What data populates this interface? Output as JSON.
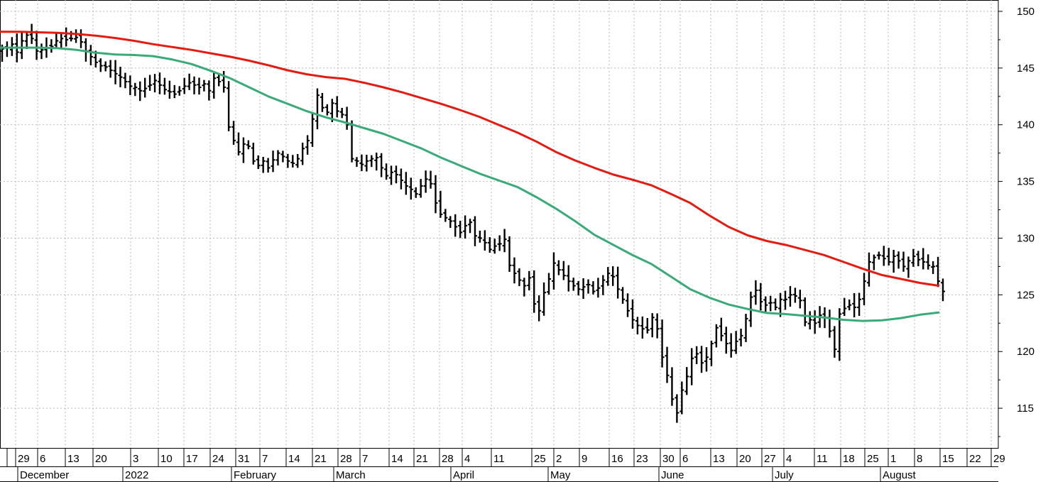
{
  "chart_data": {
    "type": "ohlc",
    "grid": true,
    "y_axis": {
      "position": "right",
      "ticks": [
        150,
        145,
        140,
        135,
        130,
        125,
        120,
        115
      ],
      "range": [
        111.5,
        151
      ]
    },
    "x_axis": {
      "week_ticks": [
        "29",
        "6",
        "13",
        "20",
        "3",
        "10",
        "17",
        "24",
        "31",
        "7",
        "14",
        "21",
        "28",
        "7",
        "14",
        "21",
        "28",
        "4",
        "11",
        "25",
        "2",
        "9",
        "16",
        "23",
        "30",
        "6",
        "13",
        "20",
        "27",
        "4",
        "11",
        "18",
        "25",
        "1",
        "8",
        "15",
        "22",
        "29"
      ],
      "months": [
        "December",
        "2022",
        "February",
        "March",
        "April",
        "May",
        "June",
        "July",
        "August"
      ]
    },
    "series": [
      {
        "kind": "ohlc",
        "color": "#000000",
        "values": [
          146.7,
          146.8,
          147.1,
          146.4,
          147.4,
          147.9,
          147.6,
          146.5,
          146.6,
          146.8,
          146.9,
          147.4,
          147.6,
          147.5,
          147.6,
          147.7,
          147.3,
          146.5,
          146.0,
          145.5,
          145.2,
          145.1,
          144.8,
          144.5,
          144.2,
          143.8,
          143.4,
          143.3,
          143.0,
          143.2,
          143.5,
          143.9,
          143.5,
          143.1,
          142.9,
          142.7,
          143.0,
          143.4,
          143.7,
          143.5,
          143.3,
          143.6,
          143.0,
          144.1,
          143.8,
          143.3,
          139.8,
          138.6,
          137.6,
          138.3,
          138.1,
          136.8,
          136.4,
          136.8,
          136.2,
          136.9,
          137.5,
          137.2,
          136.8,
          136.6,
          137.0,
          137.9,
          138.6,
          140.5,
          142.6,
          141.5,
          141.1,
          141.9,
          141.2,
          140.9,
          140.0,
          137.0,
          136.8,
          136.5,
          136.8,
          137.0,
          137.1,
          136.2,
          135.5,
          135.8,
          135.6,
          135.1,
          134.6,
          134.3,
          133.9,
          134.6,
          135.2,
          134.8,
          133.1,
          132.1,
          131.8,
          131.5,
          131.0,
          130.5,
          131.1,
          131.4,
          130.2,
          130.0,
          129.6,
          129.0,
          129.3,
          129.5,
          129.9,
          127.6,
          126.9,
          126.3,
          125.8,
          126.5,
          124.2,
          123.6,
          125.2,
          126.4,
          127.8,
          127.2,
          126.7,
          126.2,
          125.8,
          125.5,
          125.7,
          125.9,
          125.3,
          125.6,
          126.3,
          126.9,
          126.6,
          125.5,
          124.6,
          123.6,
          122.8,
          122.3,
          122.0,
          121.9,
          123.0,
          122.0,
          119.5,
          117.9,
          115.8,
          114.6,
          116.6,
          117.8,
          119.4,
          119.8,
          119.0,
          119.5,
          120.7,
          122.1,
          121.4,
          120.7,
          120.1,
          120.9,
          121.4,
          122.9,
          124.8,
          125.4,
          124.4,
          124.1,
          124.3,
          123.9,
          124.6,
          124.6,
          125.0,
          124.9,
          124.5,
          122.6,
          122.8,
          122.5,
          123.2,
          123.0,
          121.8,
          120.2,
          123.3,
          123.8,
          124.1,
          123.9,
          124.6,
          126.2,
          127.9,
          128.3,
          128.5,
          128.2,
          127.9,
          128.4,
          128.0,
          127.5,
          128.0,
          128.4,
          128.1,
          127.9,
          127.6,
          127.5,
          126.2,
          125.3
        ]
      },
      {
        "kind": "line",
        "color": "#e31b10",
        "values": [
          148.2,
          148.2,
          148.15,
          148.1,
          148.0,
          147.85,
          147.65,
          147.4,
          147.1,
          146.85,
          146.6,
          146.3,
          146.0,
          145.65,
          145.25,
          144.8,
          144.45,
          144.2,
          144.05,
          143.7,
          143.3,
          142.85,
          142.35,
          141.85,
          141.3,
          140.7,
          140.0,
          139.3,
          138.5,
          137.6,
          136.85,
          136.2,
          135.6,
          135.15,
          134.65,
          133.9,
          133.1,
          132.0,
          131.0,
          130.25,
          129.75,
          129.4,
          128.95,
          128.5,
          127.9,
          127.3,
          126.75,
          126.4,
          126.05,
          125.8
        ]
      },
      {
        "kind": "line",
        "color": "#3aaa78",
        "values": [
          146.8,
          146.8,
          146.8,
          146.75,
          146.6,
          146.35,
          146.2,
          146.15,
          146.05,
          145.75,
          145.35,
          144.75,
          144.1,
          143.3,
          142.5,
          141.85,
          141.2,
          140.65,
          140.2,
          139.7,
          139.2,
          138.55,
          137.9,
          137.1,
          136.4,
          135.7,
          135.1,
          134.5,
          133.6,
          132.6,
          131.5,
          130.3,
          129.4,
          128.5,
          127.7,
          126.6,
          125.5,
          124.75,
          124.15,
          123.75,
          123.4,
          123.3,
          123.15,
          123.0,
          122.8,
          122.7,
          122.75,
          122.95,
          123.25,
          123.45
        ]
      }
    ]
  }
}
